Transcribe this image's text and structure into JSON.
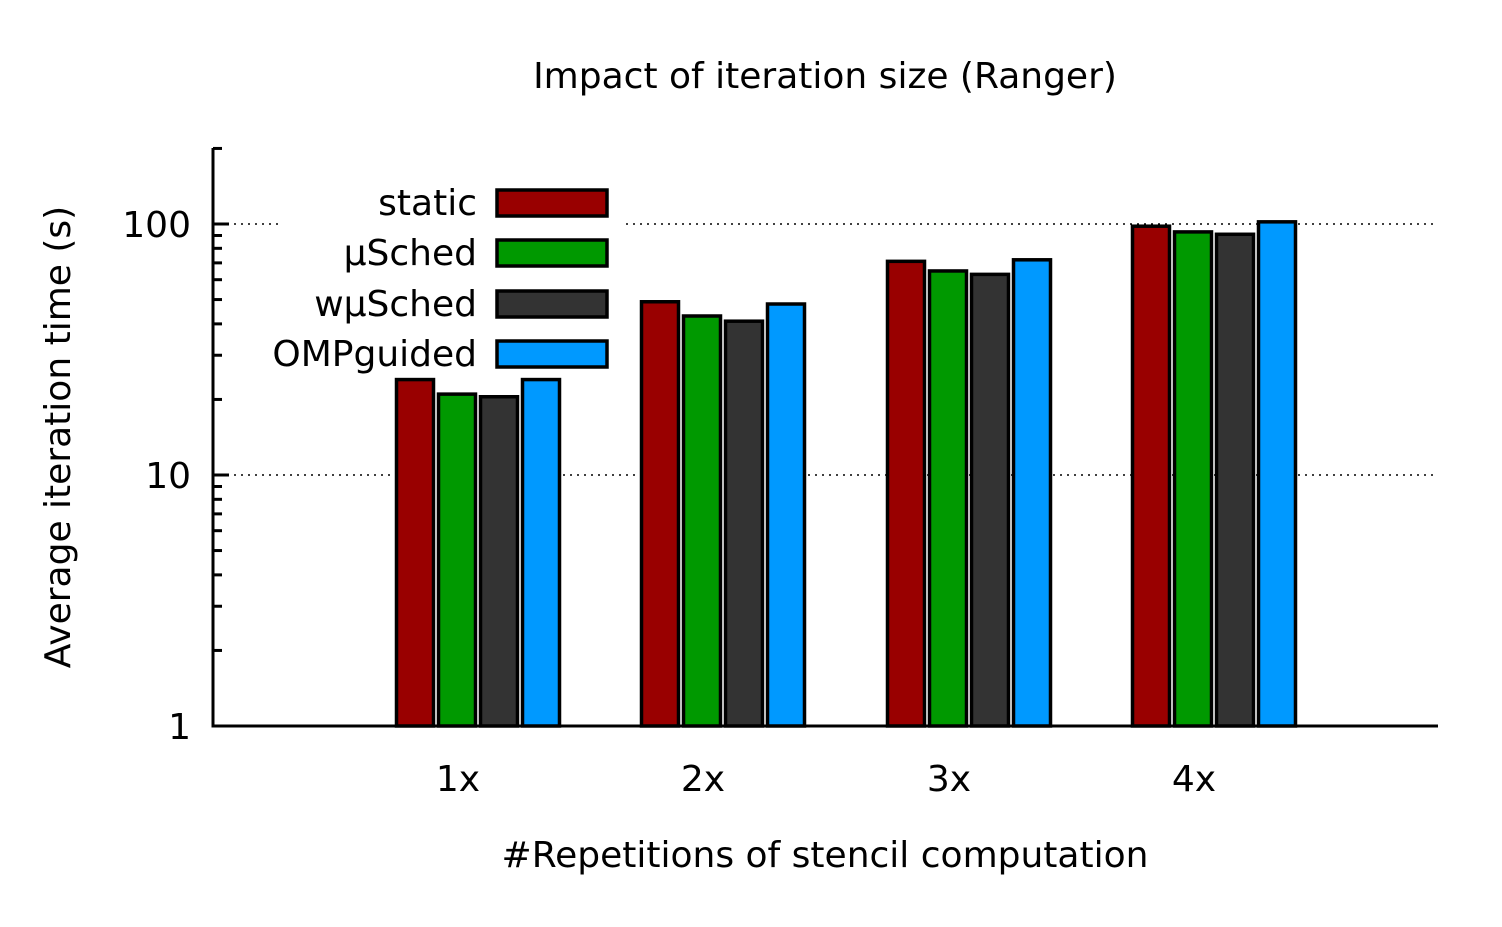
{
  "chart_data": {
    "type": "bar",
    "title": "Impact of iteration size (Ranger)",
    "xlabel": "#Repetitions of stencil computation",
    "ylabel": "Average iteration time (s)",
    "yscale": "log",
    "ylim": [
      1,
      200
    ],
    "yticks": [
      1,
      10,
      100
    ],
    "ytick_labels": [
      "1",
      "10",
      "100"
    ],
    "grid": "y-major-dotted",
    "legend_position": "top-left",
    "categories": [
      "1x",
      "2x",
      "3x",
      "4x"
    ],
    "series": [
      {
        "name": "static",
        "color": "#990000",
        "values": [
          24,
          49,
          71,
          98
        ]
      },
      {
        "name": "µSched",
        "color": "#009900",
        "values": [
          21,
          43,
          65,
          93
        ]
      },
      {
        "name": "wµSched",
        "color": "#333333",
        "values": [
          20.5,
          41,
          63,
          91
        ]
      },
      {
        "name": "OMPguided",
        "color": "#0099ff",
        "values": [
          24,
          48,
          72,
          102
        ]
      }
    ]
  }
}
